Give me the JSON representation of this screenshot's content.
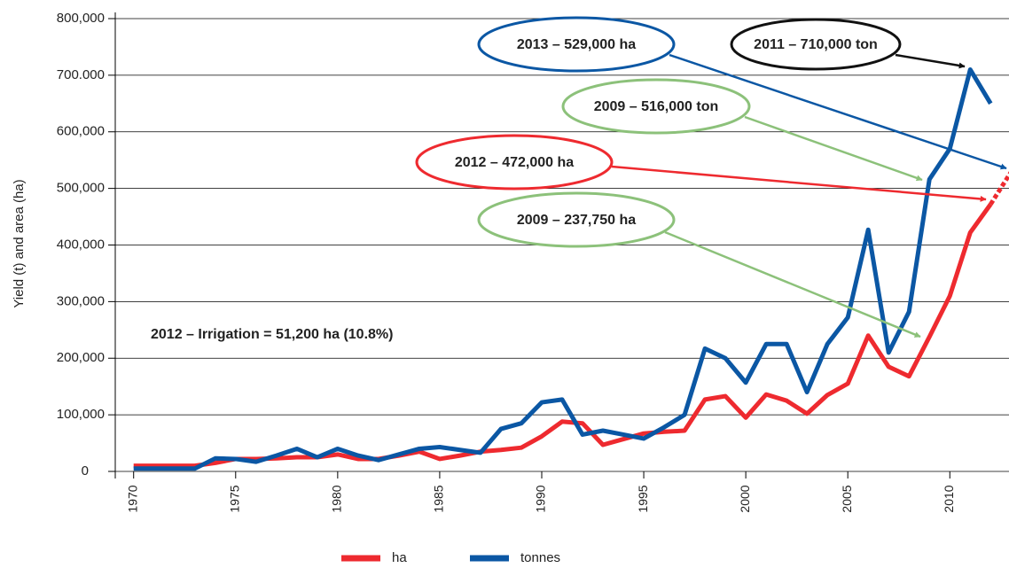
{
  "chart_data": {
    "type": "line",
    "y_label": "Yield (t) and area (ha)",
    "x": [
      1970,
      1971,
      1972,
      1973,
      1974,
      1975,
      1976,
      1977,
      1978,
      1979,
      1980,
      1981,
      1982,
      1983,
      1984,
      1985,
      1986,
      1987,
      1988,
      1989,
      1990,
      1991,
      1992,
      1993,
      1994,
      1995,
      1996,
      1997,
      1998,
      1999,
      2000,
      2001,
      2002,
      2003,
      2004,
      2005,
      2006,
      2007,
      2008,
      2009,
      2010,
      2011,
      2012
    ],
    "series": [
      {
        "name": "ha",
        "color": "#ee2a2f",
        "values": [
          10000,
          10000,
          10000,
          10000,
          15000,
          22000,
          22000,
          23000,
          25000,
          25000,
          30000,
          22000,
          22000,
          28000,
          35000,
          22000,
          28000,
          35000,
          38000,
          42000,
          62000,
          88000,
          85000,
          47000,
          57000,
          67000,
          70000,
          72000,
          127000,
          133000,
          95000,
          136000,
          125000,
          102000,
          135000,
          155000,
          240000,
          185000,
          168000,
          237750,
          310000,
          422000,
          472000
        ],
        "projection": {
          "x": [
            2012,
            2013
          ],
          "values": [
            472000,
            529000
          ]
        }
      },
      {
        "name": "tonnes",
        "color": "#0b57a4",
        "values": [
          5000,
          5000,
          5000,
          5000,
          23000,
          22000,
          17000,
          28000,
          40000,
          25000,
          40000,
          28000,
          20000,
          30000,
          40000,
          43000,
          38000,
          33000,
          75000,
          85000,
          122000,
          127000,
          65000,
          72000,
          65000,
          58000,
          78000,
          100000,
          217000,
          200000,
          157000,
          225000,
          225000,
          140000,
          225000,
          272000,
          427000,
          210000,
          282000,
          516000,
          570000,
          710000,
          650000
        ]
      }
    ],
    "xlim": [
      1969.1,
      2012.9
    ],
    "xticks": [
      1970,
      1975,
      1980,
      1985,
      1990,
      1995,
      2000,
      2005,
      2010
    ],
    "ylim": [
      0,
      800000
    ],
    "yticks": [
      0,
      {
        "value": 100000,
        "label": "100,000"
      },
      {
        "value": 200000,
        "label": "200,000"
      },
      {
        "value": 300000,
        "label": "300,000"
      },
      {
        "value": 400000,
        "label": "400,000"
      },
      {
        "value": 500000,
        "label": "500,000"
      },
      {
        "value": 600000,
        "label": "600,000"
      },
      {
        "value": 700000,
        "label": "700.000"
      },
      {
        "value": 800000,
        "label": "800,000"
      }
    ],
    "grid": true,
    "legend": "bottom",
    "annotations": [
      {
        "text": "2013 – 529,000 ha",
        "color": "#0b57a4"
      },
      {
        "text": "2011 – 710,000 ton",
        "color": "#111111"
      },
      {
        "text": "2009 – 516,000 ton",
        "color": "#8cc17a"
      },
      {
        "text": "2012 – 472,000 ha",
        "color": "#ee2a2f"
      },
      {
        "text": "2009 – 237,750 ha",
        "color": "#8cc17a"
      },
      {
        "text": "2012 – Irrigation = 51,200 ha (10.8%)"
      }
    ]
  }
}
